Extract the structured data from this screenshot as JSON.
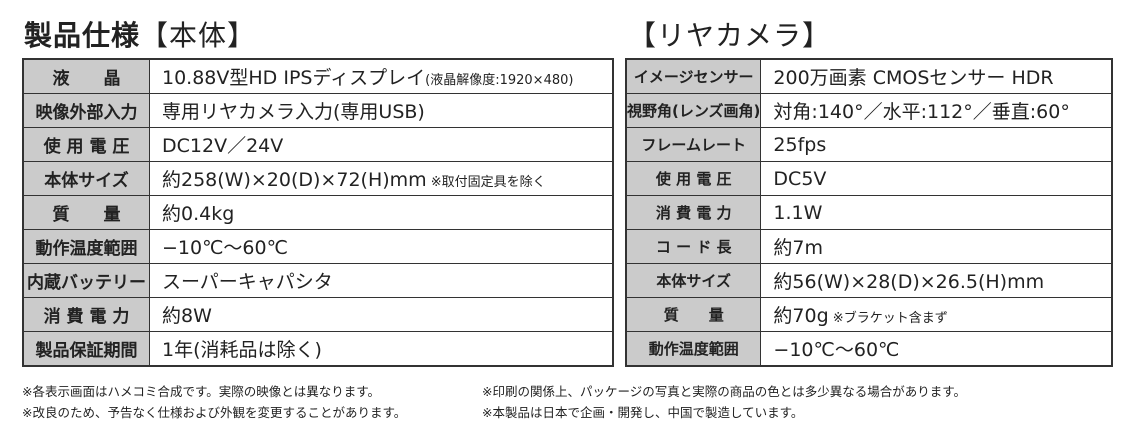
{
  "main": {
    "title": "製品仕様",
    "title_sub": "【本体】",
    "rows": [
      {
        "label": "液　　晶",
        "value": "10.88V型HD IPSディスプレイ",
        "note": "(液晶解像度:1920×480)"
      },
      {
        "label": "映像外部入力",
        "value": "専用リヤカメラ入力(専用USB)",
        "note": ""
      },
      {
        "label": "使 用 電 圧",
        "value": "DC12V／24V",
        "note": ""
      },
      {
        "label": "本体サイズ",
        "value": "約258(W)×20(D)×72(H)mm",
        "note": " ※取付固定具を除く"
      },
      {
        "label": "質　　量",
        "value": "約0.4kg",
        "note": ""
      },
      {
        "label": "動作温度範囲",
        "value": "−10℃〜60℃",
        "note": ""
      },
      {
        "label": "内蔵バッテリー",
        "value": "スーパーキャパシタ",
        "note": ""
      },
      {
        "label": "消 費 電 力",
        "value": "約8W",
        "note": ""
      },
      {
        "label": "製品保証期間",
        "value": "1年(消耗品は除く)",
        "note": ""
      }
    ]
  },
  "camera": {
    "title": "【リヤカメラ】",
    "rows": [
      {
        "label": "イメージセンサー",
        "value": "200万画素 CMOSセンサー HDR",
        "note": ""
      },
      {
        "label": "視野角(レンズ画角)",
        "value": "対角:140°／水平:112°／垂直:60°",
        "note": ""
      },
      {
        "label": "フレームレート",
        "value": "25fps",
        "note": ""
      },
      {
        "label": "使 用 電 圧",
        "value": "DC5V",
        "note": ""
      },
      {
        "label": "消 費 電 力",
        "value": "1.1W",
        "note": ""
      },
      {
        "label": "コ ー ド 長",
        "value": "約7m",
        "note": ""
      },
      {
        "label": "本体サイズ",
        "value": "約56(W)×28(D)×26.5(H)mm",
        "note": ""
      },
      {
        "label": "質　　量",
        "value": "約70g",
        "note": " ※ブラケット含まず"
      },
      {
        "label": "動作温度範囲",
        "value": "−10℃〜60℃",
        "note": ""
      }
    ]
  },
  "notes": {
    "left": [
      "※各表示画面はハメコミ合成です。実際の映像とは異なります。",
      "※改良のため、予告なく仕様および外観を変更することがあります。"
    ],
    "right": [
      "※印刷の関係上、パッケージの写真と実際の商品の色とは多少異なる場合があります。",
      "※本製品は日本で企画・開発し、中国で製造しています。"
    ]
  }
}
